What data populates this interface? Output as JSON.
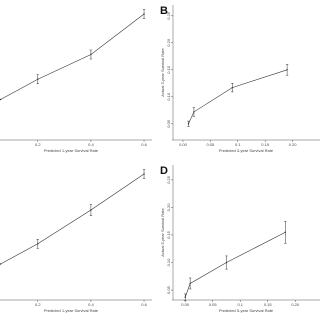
{
  "chart_data": [
    {
      "type": "line",
      "xlabel": "Predicted 1-year Survival Rate",
      "x": [
        0.06,
        0.2,
        0.4,
        0.6
      ],
      "values": [
        0.18,
        0.27,
        0.38,
        0.56
      ],
      "errors": [
        null,
        0.02,
        0.02,
        0.02
      ],
      "color": "#333333",
      "xlim": [
        0.02,
        0.63
      ],
      "ylim": [
        0,
        0.6
      ],
      "xticks": [
        0.2,
        0.4,
        0.6
      ]
    },
    {
      "type": "line",
      "panel": "B",
      "xlabel": "Predicted 3-year Survival Rate",
      "ylabel": "Actual 3-year Survival Rate",
      "x": [
        0.01,
        0.02,
        0.09,
        0.19
      ],
      "values": [
        0.05,
        0.072,
        0.117,
        0.15
      ],
      "errors": [
        0.005,
        0.008,
        0.008,
        0.01
      ],
      "color": "#333333",
      "xlim": [
        -0.02,
        0.25
      ],
      "ylim": [
        0.02,
        0.27
      ],
      "xticks": [
        {
          "value": 0,
          "label": "0.00"
        },
        {
          "value": 0.05,
          "label": "0.05"
        },
        0.1,
        0.15,
        {
          "value": 0.2,
          "label": "0.20"
        }
      ],
      "yticks": [
        0.05,
        {
          "value": 0.1,
          "label": "0.10"
        },
        0.15,
        {
          "value": 0.2,
          "label": "0.20"
        },
        0.25
      ]
    },
    {
      "type": "line",
      "xlabel": "Predicted 1-year Survival Rate",
      "x": [
        0.06,
        0.2,
        0.4,
        0.6
      ],
      "values": [
        0.16,
        0.25,
        0.4,
        0.56
      ],
      "errors": [
        null,
        0.02,
        0.025,
        0.02
      ],
      "color": "#333333",
      "xlim": [
        0.02,
        0.63
      ],
      "ylim": [
        0,
        0.6
      ],
      "xticks": [
        0.2,
        0.4,
        0.6
      ]
    },
    {
      "type": "line",
      "panel": "D",
      "xlabel": "Predicted 5-year Survival Rate",
      "ylabel": "Actual 5-year Survival Rate",
      "x": [
        0.0,
        0.009,
        0.075,
        0.182
      ],
      "values": [
        0.037,
        0.062,
        0.1,
        0.155
      ],
      "errors": [
        0.006,
        0.01,
        0.012,
        0.02
      ],
      "color": "#333333",
      "xlim": [
        -0.024,
        0.245
      ],
      "ylim": [
        0.032,
        0.277
      ],
      "xticks": [
        {
          "value": 0,
          "label": "0.00"
        },
        {
          "value": 0.05,
          "label": "0.05"
        },
        0.1,
        0.15,
        {
          "value": 0.2,
          "label": "0.20"
        }
      ],
      "yticks": [
        0.05,
        {
          "value": 0.1,
          "label": "0.10"
        },
        0.15,
        {
          "value": 0.2,
          "label": "0.20"
        },
        0.25
      ]
    }
  ]
}
